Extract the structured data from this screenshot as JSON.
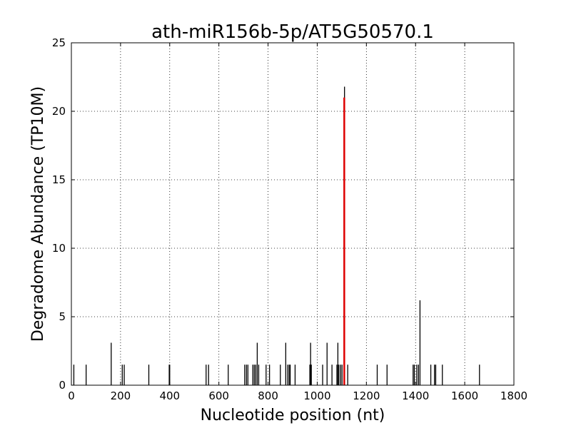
{
  "chart_data": {
    "type": "bar",
    "title": "ath-miR156b-5p/AT5G50570.1",
    "xlabel": "Nucleotide position (nt)",
    "ylabel": "Degradome Abundance (TP10M)",
    "xlim": [
      0,
      1800
    ],
    "ylim": [
      0,
      25
    ],
    "xticks": [
      0,
      200,
      400,
      600,
      800,
      1000,
      1200,
      1400,
      1600,
      1800
    ],
    "yticks": [
      0,
      5,
      10,
      15,
      20,
      25
    ],
    "grid": true,
    "series": [
      {
        "color": "#000000",
        "points": [
          {
            "x": 10,
            "y": 1.5
          },
          {
            "x": 60,
            "y": 1.5
          },
          {
            "x": 162,
            "y": 3.1
          },
          {
            "x": 207,
            "y": 1.5
          },
          {
            "x": 215,
            "y": 1.5
          },
          {
            "x": 315,
            "y": 1.5
          },
          {
            "x": 398,
            "y": 1.5
          },
          {
            "x": 400,
            "y": 1.5
          },
          {
            "x": 548,
            "y": 1.5
          },
          {
            "x": 558,
            "y": 1.5
          },
          {
            "x": 638,
            "y": 1.5
          },
          {
            "x": 705,
            "y": 1.5
          },
          {
            "x": 712,
            "y": 1.5
          },
          {
            "x": 718,
            "y": 1.5
          },
          {
            "x": 738,
            "y": 1.5
          },
          {
            "x": 744,
            "y": 1.5
          },
          {
            "x": 750,
            "y": 1.5
          },
          {
            "x": 756,
            "y": 3.1
          },
          {
            "x": 762,
            "y": 1.5
          },
          {
            "x": 792,
            "y": 1.5
          },
          {
            "x": 806,
            "y": 1.5
          },
          {
            "x": 850,
            "y": 1.5
          },
          {
            "x": 872,
            "y": 3.1
          },
          {
            "x": 880,
            "y": 1.5
          },
          {
            "x": 886,
            "y": 1.5
          },
          {
            "x": 890,
            "y": 1.5
          },
          {
            "x": 910,
            "y": 1.5
          },
          {
            "x": 970,
            "y": 1.5
          },
          {
            "x": 973,
            "y": 3.1
          },
          {
            "x": 976,
            "y": 1.5
          },
          {
            "x": 1022,
            "y": 1.5
          },
          {
            "x": 1040,
            "y": 3.1
          },
          {
            "x": 1060,
            "y": 1.5
          },
          {
            "x": 1080,
            "y": 1.5
          },
          {
            "x": 1084,
            "y": 3.1
          },
          {
            "x": 1088,
            "y": 1.5
          },
          {
            "x": 1095,
            "y": 1.5
          },
          {
            "x": 1101,
            "y": 1.5
          },
          {
            "x": 1111,
            "y": 21.8
          },
          {
            "x": 1124,
            "y": 1.5
          },
          {
            "x": 1244,
            "y": 1.5
          },
          {
            "x": 1284,
            "y": 1.5
          },
          {
            "x": 1390,
            "y": 1.5
          },
          {
            "x": 1395,
            "y": 1.5
          },
          {
            "x": 1405,
            "y": 1.5
          },
          {
            "x": 1412,
            "y": 1.5
          },
          {
            "x": 1418,
            "y": 6.2
          },
          {
            "x": 1462,
            "y": 1.5
          },
          {
            "x": 1477,
            "y": 1.5
          },
          {
            "x": 1482,
            "y": 1.5
          },
          {
            "x": 1509,
            "y": 1.5
          },
          {
            "x": 1660,
            "y": 1.5
          }
        ]
      },
      {
        "color": "#dd0000",
        "points": [
          {
            "x": 1110,
            "y": 21.0
          }
        ]
      }
    ]
  }
}
